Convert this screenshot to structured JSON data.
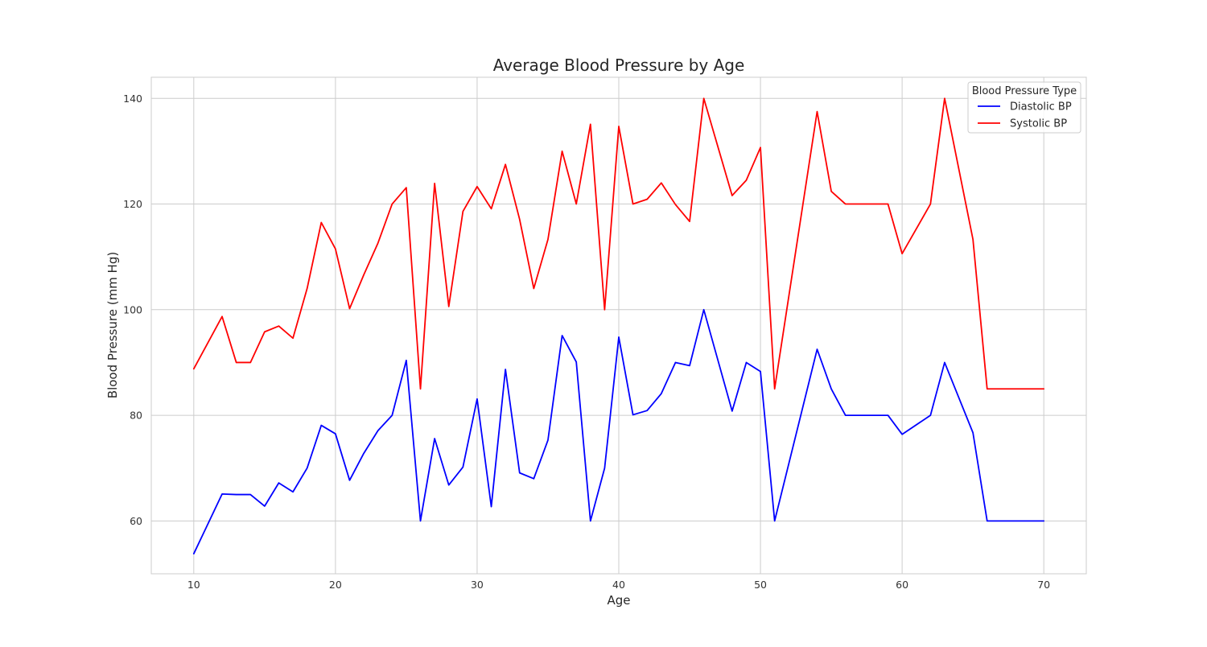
{
  "chart_data": {
    "type": "line",
    "title": "Average Blood Pressure by Age",
    "xlabel": "Age",
    "ylabel": "Blood Pressure (mm Hg)",
    "xlim": [
      7,
      73
    ],
    "ylim": [
      50,
      144
    ],
    "xticks": [
      10,
      20,
      30,
      40,
      50,
      60,
      70
    ],
    "yticks": [
      60,
      80,
      100,
      120,
      140
    ],
    "grid": true,
    "legend": {
      "title": "Blood Pressure Type",
      "placement": "top-right"
    },
    "series": [
      {
        "name": "Diastolic BP",
        "color": "#0000ff",
        "points": [
          [
            10,
            53.8
          ],
          [
            12,
            65.1
          ],
          [
            13,
            65.0
          ],
          [
            14,
            65.0
          ],
          [
            15,
            62.8
          ],
          [
            16,
            67.2
          ],
          [
            17,
            65.5
          ],
          [
            18,
            70.0
          ],
          [
            19,
            78.1
          ],
          [
            20,
            76.5
          ],
          [
            21,
            67.7
          ],
          [
            22,
            72.8
          ],
          [
            23,
            77.1
          ],
          [
            24,
            80.0
          ],
          [
            25,
            90.4
          ],
          [
            26,
            60.0
          ],
          [
            27,
            75.6
          ],
          [
            28,
            66.8
          ],
          [
            29,
            70.2
          ],
          [
            30,
            83.1
          ],
          [
            31,
            62.7
          ],
          [
            32,
            88.7
          ],
          [
            33,
            69.1
          ],
          [
            34,
            68.0
          ],
          [
            35,
            75.3
          ],
          [
            36,
            95.1
          ],
          [
            37,
            90.1
          ],
          [
            38,
            60.0
          ],
          [
            39,
            70.0
          ],
          [
            40,
            94.8
          ],
          [
            41,
            80.1
          ],
          [
            42,
            80.9
          ],
          [
            43,
            84.1
          ],
          [
            44,
            90.0
          ],
          [
            45,
            89.4
          ],
          [
            46,
            100.0
          ],
          [
            48,
            80.8
          ],
          [
            49,
            90.0
          ],
          [
            50,
            88.3
          ],
          [
            51,
            60.0
          ],
          [
            54,
            92.5
          ],
          [
            55,
            85.0
          ],
          [
            56,
            80.0
          ],
          [
            57,
            80.0
          ],
          [
            58,
            80.0
          ],
          [
            59,
            80.0
          ],
          [
            60,
            76.4
          ],
          [
            62,
            80.0
          ],
          [
            63,
            90.0
          ],
          [
            65,
            76.7
          ],
          [
            66,
            60.0
          ],
          [
            70,
            60.0
          ]
        ]
      },
      {
        "name": "Systolic BP",
        "color": "#ff0000",
        "points": [
          [
            10,
            88.8
          ],
          [
            12,
            98.7
          ],
          [
            13,
            90.0
          ],
          [
            14,
            90.0
          ],
          [
            15,
            95.8
          ],
          [
            16,
            96.9
          ],
          [
            17,
            94.6
          ],
          [
            18,
            104.0
          ],
          [
            19,
            116.5
          ],
          [
            20,
            111.5
          ],
          [
            21,
            100.2
          ],
          [
            22,
            106.6
          ],
          [
            23,
            112.6
          ],
          [
            24,
            120.0
          ],
          [
            25,
            123.1
          ],
          [
            26,
            85.0
          ],
          [
            27,
            123.9
          ],
          [
            28,
            100.6
          ],
          [
            29,
            118.6
          ],
          [
            30,
            123.3
          ],
          [
            31,
            119.1
          ],
          [
            32,
            127.5
          ],
          [
            33,
            117.1
          ],
          [
            34,
            104.0
          ],
          [
            35,
            113.3
          ],
          [
            36,
            130.0
          ],
          [
            37,
            120.0
          ],
          [
            38,
            135.1
          ],
          [
            39,
            100.0
          ],
          [
            40,
            134.7
          ],
          [
            41,
            120.0
          ],
          [
            42,
            120.9
          ],
          [
            43,
            124.0
          ],
          [
            44,
            119.9
          ],
          [
            45,
            116.7
          ],
          [
            46,
            140.0
          ],
          [
            48,
            121.6
          ],
          [
            49,
            124.5
          ],
          [
            50,
            130.7
          ],
          [
            51,
            85.0
          ],
          [
            54,
            137.5
          ],
          [
            55,
            122.4
          ],
          [
            56,
            120.0
          ],
          [
            57,
            120.0
          ],
          [
            58,
            120.0
          ],
          [
            59,
            120.0
          ],
          [
            60,
            110.6
          ],
          [
            62,
            120.0
          ],
          [
            63,
            140.0
          ],
          [
            65,
            113.3
          ],
          [
            66,
            85.0
          ],
          [
            70,
            85.0
          ]
        ]
      }
    ]
  }
}
